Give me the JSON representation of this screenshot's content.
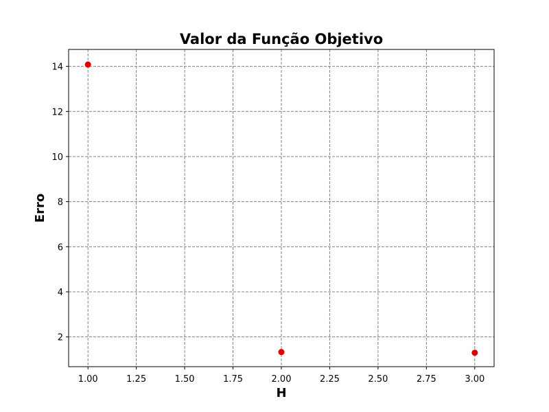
{
  "chart_data": {
    "type": "scatter",
    "title": "Valor da Função Objetivo",
    "xlabel": "H",
    "ylabel": "Erro",
    "xlim": [
      0.9,
      3.1
    ],
    "ylim": [
      0.68,
      14.75
    ],
    "x_ticks": [
      1.0,
      1.25,
      1.5,
      1.75,
      2.0,
      2.25,
      2.5,
      2.75,
      3.0
    ],
    "x_tick_labels": [
      "1.00",
      "1.25",
      "1.50",
      "1.75",
      "2.00",
      "2.25",
      "2.50",
      "2.75",
      "3.00"
    ],
    "y_ticks": [
      2,
      4,
      6,
      8,
      10,
      12,
      14
    ],
    "y_tick_labels": [
      "2",
      "4",
      "6",
      "8",
      "10",
      "12",
      "14"
    ],
    "grid": true,
    "grid_style": "dashed",
    "grid_color": "#808080",
    "marker_color": "#e00000",
    "series": [
      {
        "x": [
          1.0,
          2.0,
          3.0
        ],
        "y": [
          14.08,
          1.33,
          1.3
        ]
      }
    ]
  }
}
